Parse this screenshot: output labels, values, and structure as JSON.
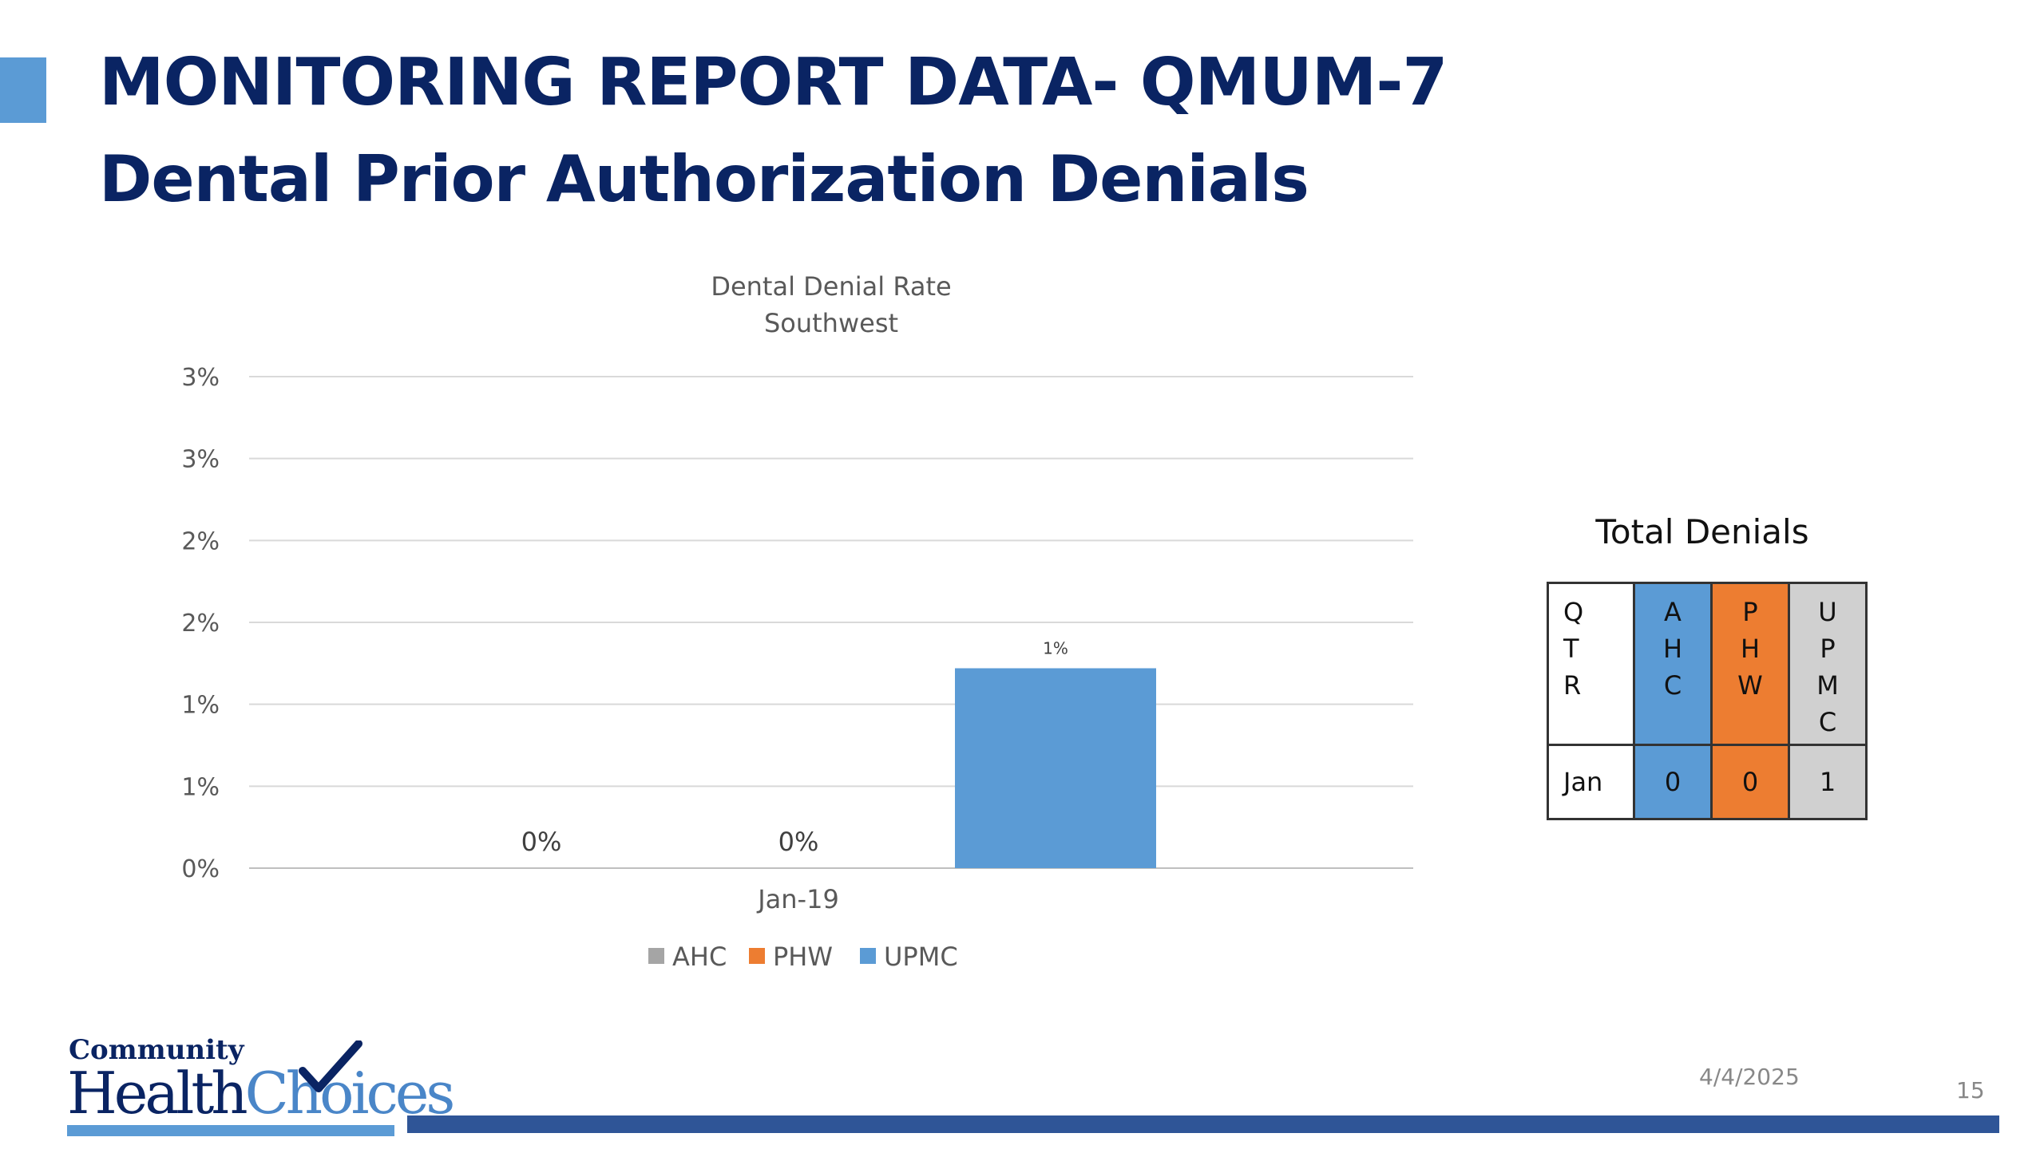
{
  "slide": {
    "title_line1": "MONITORING REPORT DATA- QMUM-7",
    "title_line2": "Dental Prior Authorization Denials",
    "date": "4/4/2025",
    "page_number": "15"
  },
  "colors": {
    "accent": "#5b9bd5",
    "title": "#0a2463",
    "AHC": "#a5a5a5",
    "PHW": "#ed7d31",
    "UPMC": "#5b9bd5",
    "footer_bar": "#2f5597"
  },
  "chart_data": {
    "type": "bar",
    "title": "Dental Denial Rate",
    "subtitle": "Southwest",
    "categories": [
      "Jan-19"
    ],
    "series": [
      {
        "name": "AHC",
        "values": [
          0
        ],
        "data_labels": [
          "0%"
        ]
      },
      {
        "name": "PHW",
        "values": [
          0
        ],
        "data_labels": [
          "0%"
        ]
      },
      {
        "name": "UPMC",
        "values": [
          1.22
        ],
        "data_labels": [
          "1%"
        ]
      }
    ],
    "y_ticks": [
      {
        "value": 0,
        "label": "0%"
      },
      {
        "value": 0.5,
        "label": "1%"
      },
      {
        "value": 1.0,
        "label": "1%"
      },
      {
        "value": 1.5,
        "label": "2%"
      },
      {
        "value": 2.0,
        "label": "2%"
      },
      {
        "value": 2.5,
        "label": "3%"
      },
      {
        "value": 3.0,
        "label": "3%"
      }
    ],
    "ylim": [
      0,
      3.0
    ],
    "grid": true,
    "legend_position": "bottom"
  },
  "total_denials": {
    "title": "Total Denials",
    "headers": [
      "Q\nT\nR",
      "A\nH\nC",
      "P\nH\nW",
      "U\nP\nM\nC"
    ],
    "rows": [
      {
        "qtr": "Jan",
        "AHC": "0",
        "PHW": "0",
        "UPMC": "1"
      }
    ]
  },
  "logo": {
    "line1": "Community",
    "health": "Health",
    "choices": "Choices"
  }
}
